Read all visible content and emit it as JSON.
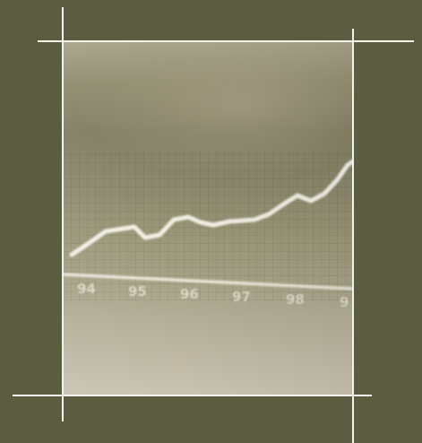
{
  "scene": {
    "background_color": "#5a5d3f",
    "frame_line_color": "#f4f2ea",
    "chart_line_color": "#f2efe6"
  },
  "photo_chart": {
    "tick_labels": [
      "94",
      "95",
      "96",
      "97",
      "98",
      "9"
    ]
  }
}
